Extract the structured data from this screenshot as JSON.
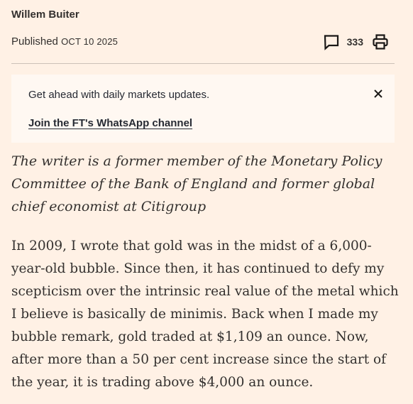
{
  "byline": {
    "author": "Willem Buiter",
    "published_label": "Published",
    "published_date": "OCT 10 2025"
  },
  "tools": {
    "comment_icon": "speech-bubble-icon",
    "comment_count": "333",
    "print_icon": "printer-icon"
  },
  "promo": {
    "text": "Get ahead with daily markets updates.",
    "link": "Join the FT's WhatsApp channel",
    "close_icon": "close-icon"
  },
  "article": {
    "standfirst": "The writer is a former member of the Monetary Policy Committee of the Bank of England and former global chief economist at Citigroup",
    "paragraph_1": "In 2009, I wrote that gold was in the midst of a 6,000-year-old bubble. Since then, it has continued to defy my scepticism over the intrinsic real value of the metal which I believe is basically de minimis. Back when I made my bubble remark, gold traded at $1,109 an ounce. Now, after more than a 50 per cent increase since the start of the year, it is trading above $4,000 an ounce."
  }
}
